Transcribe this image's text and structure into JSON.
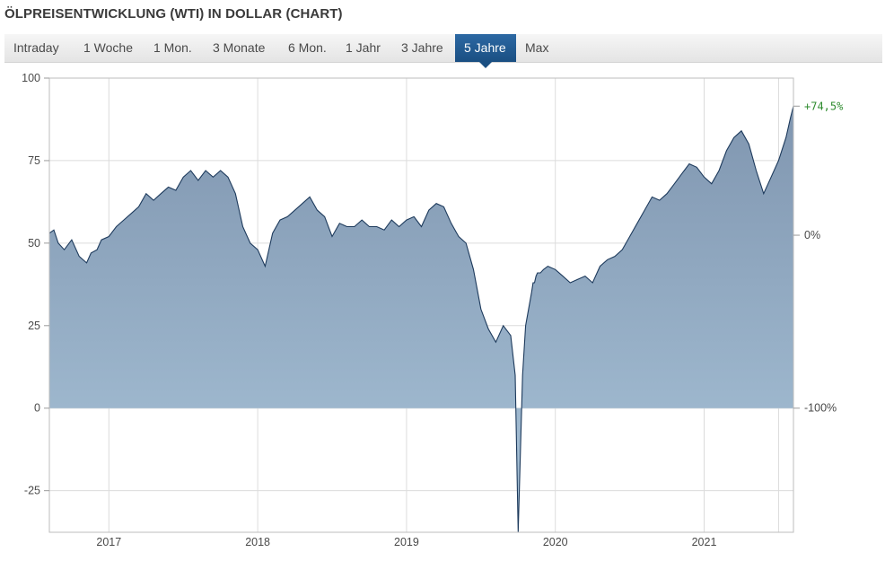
{
  "header": {
    "title": "ÖLPREISENTWICKLUNG (WTI) IN DOLLAR (CHART)"
  },
  "tabs": [
    {
      "label": "Intraday",
      "active": false
    },
    {
      "label": "1 Woche",
      "active": false
    },
    {
      "label": "1 Mon.",
      "active": false
    },
    {
      "label": "3 Monate",
      "active": false
    },
    {
      "label": "6 Mon.",
      "active": false
    },
    {
      "label": "1 Jahr",
      "active": false
    },
    {
      "label": "3 Jahre",
      "active": false
    },
    {
      "label": "5 Jahre",
      "active": true
    },
    {
      "label": "Max",
      "active": false
    }
  ],
  "colors": {
    "line": "#1d3a5c",
    "area_top": "#8096b0",
    "area_bottom": "#a9c4d9",
    "grid": "#dcdcdc",
    "active_tab": "#1f5a92",
    "positive_label": "#2e8b2e"
  },
  "chart_data": {
    "type": "area",
    "title": "",
    "xlabel": "",
    "ylabel": "",
    "x_domain": [
      2016.6,
      2021.6
    ],
    "ylim": [
      -37.6,
      100
    ],
    "y_ticks": [
      100,
      75,
      50,
      25,
      0,
      -25
    ],
    "y_tick_labels": [
      "100",
      "75",
      "50",
      "25",
      "0",
      "-25"
    ],
    "x_ticks": [
      2017,
      2018,
      2019,
      2020,
      2021
    ],
    "x_tick_labels": [
      "2017",
      "2018",
      "2019",
      "2020",
      "2021"
    ],
    "grid": true,
    "secondary_axis": [
      {
        "value": 91.5,
        "label": "+74,5%",
        "positive": true
      },
      {
        "value": 52.4,
        "label": "0%",
        "positive": false
      },
      {
        "value": 0,
        "label": "-100%",
        "positive": false
      }
    ],
    "series": [
      {
        "x": [
          2016.6,
          2016.63,
          2016.66,
          2016.7,
          2016.75,
          2016.8,
          2016.85,
          2016.88,
          2016.92,
          2016.95,
          2017.0,
          2017.05,
          2017.1,
          2017.15,
          2017.2,
          2017.25,
          2017.3,
          2017.35,
          2017.4,
          2017.45,
          2017.5,
          2017.55,
          2017.6,
          2017.65,
          2017.7,
          2017.75,
          2017.8,
          2017.85,
          2017.9,
          2017.95,
          2018.0,
          2018.05,
          2018.1,
          2018.15,
          2018.2,
          2018.25,
          2018.3,
          2018.35,
          2018.4,
          2018.45,
          2018.5,
          2018.55,
          2018.6,
          2018.65,
          2018.7,
          2018.75,
          2018.8,
          2018.85,
          2018.9,
          2018.95,
          2019.0,
          2019.05,
          2019.1,
          2019.15,
          2019.2,
          2019.25,
          2019.3,
          2019.35,
          2019.4,
          2019.45,
          2019.5,
          2019.55,
          2019.6,
          2019.65,
          2019.7,
          2019.73,
          2019.75,
          2019.78,
          2019.8,
          2019.82,
          2019.84,
          2019.85,
          2019.86,
          2019.87,
          2019.88,
          2019.9,
          2019.92,
          2019.95,
          2020.0,
          2020.05,
          2020.1,
          2020.15,
          2020.2,
          2020.25,
          2020.3,
          2020.35,
          2020.4,
          2020.45,
          2020.5,
          2020.55,
          2020.6,
          2020.65,
          2020.7,
          2020.75,
          2020.8,
          2020.85,
          2020.9,
          2020.95,
          2021.0,
          2021.05,
          2021.1,
          2021.15,
          2021.2,
          2021.25,
          2021.3,
          2021.35,
          2021.4,
          2021.45,
          2021.5,
          2021.55,
          2021.58,
          2021.6
        ],
        "y": [
          53,
          54,
          50,
          48,
          51,
          46,
          44,
          47,
          48,
          51,
          52,
          55,
          57,
          59,
          61,
          65,
          63,
          65,
          67,
          66,
          70,
          72,
          69,
          72,
          70,
          72,
          70,
          65,
          55,
          50,
          48,
          43,
          53,
          57,
          58,
          60,
          62,
          64,
          60,
          58,
          52,
          56,
          55,
          55,
          57,
          55,
          55,
          54,
          57,
          55,
          57,
          58,
          55,
          60,
          62,
          61,
          56,
          52,
          50,
          42,
          30,
          24,
          20,
          25,
          22,
          10,
          -37.6,
          10,
          25,
          30,
          35,
          38,
          38,
          40,
          41,
          41,
          42,
          43,
          42,
          40,
          38,
          39,
          40,
          38,
          43,
          45,
          46,
          48,
          52,
          56,
          60,
          64,
          63,
          65,
          68,
          71,
          74,
          73,
          70,
          68,
          72,
          78,
          82,
          84,
          80,
          72,
          65,
          70,
          75,
          82,
          88,
          91.5
        ]
      }
    ]
  }
}
